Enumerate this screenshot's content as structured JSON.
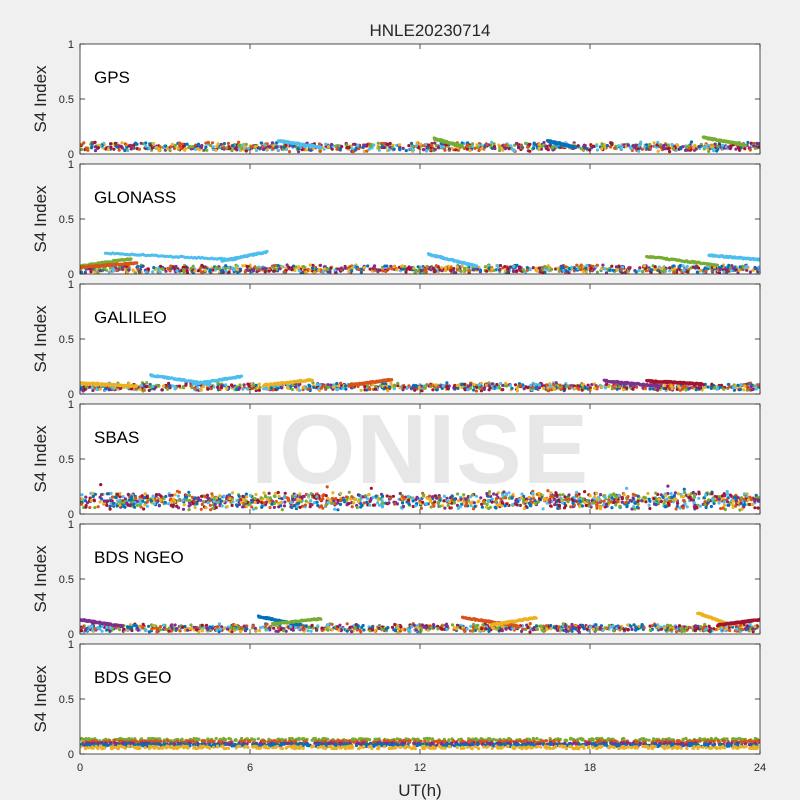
{
  "figure": {
    "title": "HNLE20230714",
    "watermark": "IONISE",
    "xlabel": "UT(h)",
    "ylabel": "S4 Index"
  },
  "colors": {
    "background": "#f0f0f0",
    "axes_bg": "#ffffff",
    "series": [
      "#0072BD",
      "#D95319",
      "#EDB120",
      "#7E2F8E",
      "#77AC30",
      "#4DBEEE",
      "#A2142F"
    ]
  },
  "chart_data": [
    {
      "type": "scatter",
      "panel_label": "GPS",
      "xlim": [
        0,
        24
      ],
      "ylim": [
        0,
        1
      ],
      "xticks": [
        0,
        6,
        12,
        18,
        24
      ],
      "yticks": [
        0,
        0.5,
        1
      ],
      "ytick_labels": [
        "0",
        "0.5",
        "1"
      ],
      "grid": false,
      "baseline": [
        0.04,
        0.09
      ],
      "noise": 0.02,
      "arcs": [
        {
          "x": [
            7.0,
            8.5
          ],
          "y": [
            0.12,
            0.06
          ],
          "color": 5
        },
        {
          "x": [
            12.5,
            13.5
          ],
          "y": [
            0.14,
            0.07
          ],
          "color": 4
        },
        {
          "x": [
            16.5,
            17.5
          ],
          "y": [
            0.12,
            0.06
          ],
          "color": 0
        },
        {
          "x": [
            22.0,
            23.5
          ],
          "y": [
            0.15,
            0.08
          ],
          "color": 4
        }
      ]
    },
    {
      "type": "scatter",
      "panel_label": "GLONASS",
      "xlim": [
        0,
        24
      ],
      "ylim": [
        0,
        1
      ],
      "xticks": [
        0,
        6,
        12,
        18,
        24
      ],
      "yticks": [
        0,
        0.5,
        1
      ],
      "ytick_labels": [
        "0",
        "0.5",
        "1"
      ],
      "grid": false,
      "baseline": [
        0.02,
        0.07
      ],
      "noise": 0.015,
      "arcs": [
        {
          "x": [
            0.0,
            1.8
          ],
          "y": [
            0.07,
            0.14
          ],
          "color": 4
        },
        {
          "x": [
            0.9,
            5.5
          ],
          "y": [
            0.19,
            0.13
          ],
          "color": 5
        },
        {
          "x": [
            5.0,
            6.6
          ],
          "y": [
            0.12,
            0.2
          ],
          "color": 5
        },
        {
          "x": [
            12.3,
            14.0
          ],
          "y": [
            0.18,
            0.07
          ],
          "color": 5
        },
        {
          "x": [
            20.0,
            22.5
          ],
          "y": [
            0.16,
            0.08
          ],
          "color": 4
        },
        {
          "x": [
            22.2,
            24.0
          ],
          "y": [
            0.17,
            0.13
          ],
          "color": 5
        },
        {
          "x": [
            0.0,
            2.0
          ],
          "y": [
            0.06,
            0.1
          ],
          "color": 1
        }
      ]
    },
    {
      "type": "scatter",
      "panel_label": "GALILEO",
      "xlim": [
        0,
        24
      ],
      "ylim": [
        0,
        1
      ],
      "xticks": [
        0,
        6,
        12,
        18,
        24
      ],
      "yticks": [
        0,
        0.5,
        1
      ],
      "ytick_labels": [
        "0",
        "0.5",
        "1"
      ],
      "grid": false,
      "baseline": [
        0.04,
        0.09
      ],
      "noise": 0.015,
      "arcs": [
        {
          "x": [
            2.5,
            4.6
          ],
          "y": [
            0.17,
            0.09
          ],
          "color": 5
        },
        {
          "x": [
            4.0,
            5.7
          ],
          "y": [
            0.09,
            0.16
          ],
          "color": 5
        },
        {
          "x": [
            0.0,
            2.0
          ],
          "y": [
            0.1,
            0.07
          ],
          "color": 2
        },
        {
          "x": [
            6.5,
            8.2
          ],
          "y": [
            0.08,
            0.13
          ],
          "color": 2
        },
        {
          "x": [
            9.5,
            11.0
          ],
          "y": [
            0.08,
            0.13
          ],
          "color": 1
        },
        {
          "x": [
            18.5,
            20.5
          ],
          "y": [
            0.12,
            0.07
          ],
          "color": 3
        },
        {
          "x": [
            20.0,
            22.0
          ],
          "y": [
            0.12,
            0.09
          ],
          "color": 6
        }
      ]
    },
    {
      "type": "scatter",
      "panel_label": "SBAS",
      "xlim": [
        0,
        24
      ],
      "ylim": [
        0,
        1
      ],
      "xticks": [
        0,
        6,
        12,
        18,
        24
      ],
      "yticks": [
        0,
        0.5,
        1
      ],
      "ytick_labels": [
        "0",
        "0.5",
        "1"
      ],
      "grid": false,
      "baseline": [
        0.08,
        0.16
      ],
      "noise": 0.045,
      "arcs": []
    },
    {
      "type": "scatter",
      "panel_label": "BDS NGEO",
      "xlim": [
        0,
        24
      ],
      "ylim": [
        0,
        1
      ],
      "xticks": [
        0,
        6,
        12,
        18,
        24
      ],
      "yticks": [
        0,
        0.5,
        1
      ],
      "ytick_labels": [
        "0",
        "0.5",
        "1"
      ],
      "grid": false,
      "baseline": [
        0.03,
        0.08
      ],
      "noise": 0.015,
      "arcs": [
        {
          "x": [
            0.0,
            1.5
          ],
          "y": [
            0.13,
            0.07
          ],
          "color": 3
        },
        {
          "x": [
            6.3,
            7.8
          ],
          "y": [
            0.16,
            0.08
          ],
          "color": 0
        },
        {
          "x": [
            6.8,
            8.5
          ],
          "y": [
            0.09,
            0.14
          ],
          "color": 4
        },
        {
          "x": [
            13.5,
            15.5
          ],
          "y": [
            0.15,
            0.07
          ],
          "color": 1
        },
        {
          "x": [
            14.5,
            16.1
          ],
          "y": [
            0.08,
            0.15
          ],
          "color": 2
        },
        {
          "x": [
            21.8,
            23.0
          ],
          "y": [
            0.19,
            0.08
          ],
          "color": 2
        },
        {
          "x": [
            22.5,
            24.0
          ],
          "y": [
            0.08,
            0.13
          ],
          "color": 6
        }
      ]
    },
    {
      "type": "scatter",
      "panel_label": "BDS GEO",
      "xlim": [
        0,
        24
      ],
      "ylim": [
        0,
        1
      ],
      "xticks": [
        0,
        6,
        12,
        18,
        24
      ],
      "yticks": [
        0,
        0.5,
        1
      ],
      "ytick_labels": [
        "0",
        "0.5",
        "1"
      ],
      "grid": false,
      "bands": [
        {
          "y": 0.13,
          "color": 4
        },
        {
          "y": 0.11,
          "color": 1
        },
        {
          "y": 0.09,
          "color": 3
        },
        {
          "y": 0.08,
          "color": 0
        },
        {
          "y": 0.06,
          "color": 2
        }
      ],
      "noise": 0.012
    }
  ]
}
